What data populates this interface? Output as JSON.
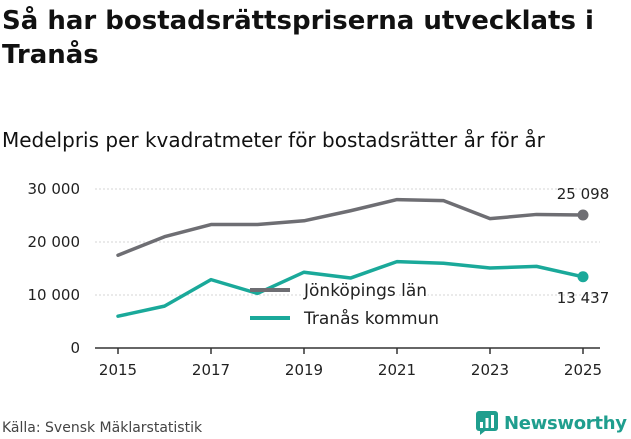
{
  "header": {
    "title": "Så har bostadsrättspriserna utvecklats i Tranås",
    "subtitle": "Medelpris per kvadratmeter för bostadsrätter år för år"
  },
  "footer": {
    "source": "Källa: Svensk Mäklarstatistik",
    "brand": "Newsworthy"
  },
  "chart_data": {
    "type": "line",
    "title": "Så har bostadsrättspriserna utvecklats i Tranås",
    "subtitle": "Medelpris per kvadratmeter för bostadsrätter år för år",
    "xlabel": "",
    "ylabel": "",
    "x": [
      2015,
      2016,
      2017,
      2018,
      2019,
      2020,
      2021,
      2022,
      2023,
      2024,
      2025
    ],
    "x_ticks": [
      2015,
      2017,
      2019,
      2021,
      2023,
      2025
    ],
    "y_ticks": [
      0,
      10000,
      20000,
      30000
    ],
    "y_tick_labels": [
      "0",
      "10 000",
      "20 000",
      "30 000"
    ],
    "ylim": [
      0,
      30000
    ],
    "xlim": [
      2015,
      2025
    ],
    "grid": true,
    "legend_position": "center",
    "series": [
      {
        "name": "Jönköpings län",
        "color": "#6e6e73",
        "values": [
          17500,
          21000,
          23300,
          23300,
          24000,
          25900,
          28000,
          27800,
          24400,
          25200,
          25098
        ],
        "end_label": "25 098"
      },
      {
        "name": "Tranås kommun",
        "color": "#1aa99a",
        "values": [
          6000,
          7900,
          12900,
          10300,
          14300,
          13200,
          16300,
          16000,
          15100,
          15400,
          13437
        ],
        "end_label": "13 437"
      }
    ]
  }
}
